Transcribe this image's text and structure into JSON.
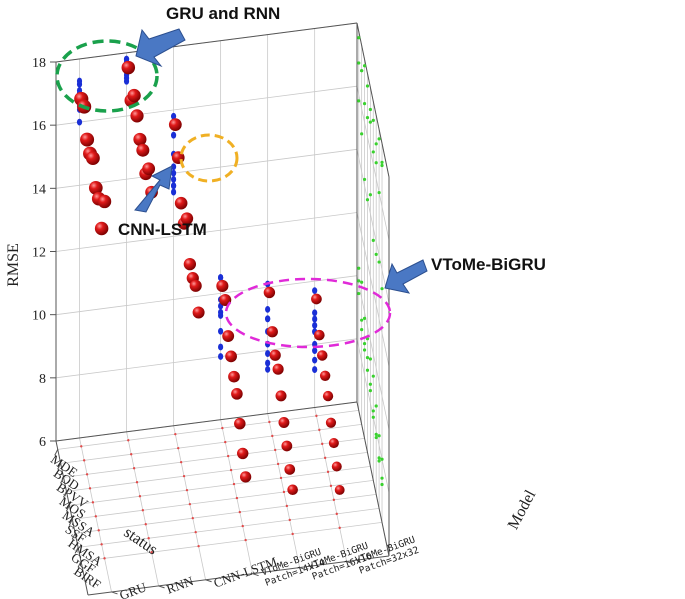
{
  "colors": {
    "ball": "#cc1010",
    "ball_highlight": "#ff8a8a",
    "blue_marker": "#1a2fd6",
    "green_dot": "#39d12e",
    "floor_dot": "#e24a4a",
    "arrow": "#4a78c4",
    "arrow_outline": "#2c4f8f",
    "ellipse_green": "#1aa14c",
    "ellipse_orange": "#f0b024",
    "ellipse_magenta": "#e02ad8"
  },
  "chart_data": {
    "type": "scatter",
    "subtype": "3d-scatter",
    "xlabel": "status",
    "ylabel": "Model",
    "zlabel": "RMSE",
    "x_categories": [
      "MDE",
      "BOD",
      "BPVV",
      "MOS",
      "MSSA",
      "SSF",
      "HMSA",
      "GGF",
      "BIRF"
    ],
    "y_categories": [
      "GRU",
      "RNN",
      "CNN-LSTM",
      "VToMe-BiGRU Patch=14x14",
      "VToMe-BiGRU Patch=16x16",
      "VToMe-BiGRU Patch=32x32"
    ],
    "zlim": [
      6,
      18
    ],
    "z_ticks": [
      6,
      8,
      10,
      12,
      14,
      16,
      18
    ],
    "grid": true,
    "series": [
      {
        "model_index": 1,
        "values": [
          17.8,
          17.2,
          17.8,
          17.6,
          17.3,
          17.4,
          17.1,
          17.7,
          17.4
        ]
      },
      {
        "model_index": 0,
        "values": [
          17.0,
          17.2,
          16.6,
          16.6,
          16.9,
          16.4,
          16.5,
          16.0,
          17.3
        ]
      },
      {
        "model_index": 2,
        "values": [
          15.8,
          15.2,
          14.2,
          14.0,
          14.6,
          13.6,
          13.6,
          13.8,
          13.4
        ]
      },
      {
        "model_index": 3,
        "values": [
          10.5,
          10.5,
          9.8,
          9.6,
          9.4,
          9.3,
          8.8,
          8.3,
          8.0
        ]
      },
      {
        "model_index": 4,
        "values": [
          10.1,
          9.3,
          9.0,
          9.0,
          8.6,
          8.2,
          7.9,
          7.6,
          7.4
        ]
      },
      {
        "model_index": 5,
        "values": [
          9.7,
          9.0,
          8.8,
          8.6,
          8.4,
          8.0,
          7.8,
          7.5,
          7.2
        ]
      }
    ],
    "annotations": [
      {
        "text": "GRU and RNN"
      },
      {
        "text": "CNN-LSTM"
      },
      {
        "text": "VToMe-BiGRU"
      }
    ]
  }
}
